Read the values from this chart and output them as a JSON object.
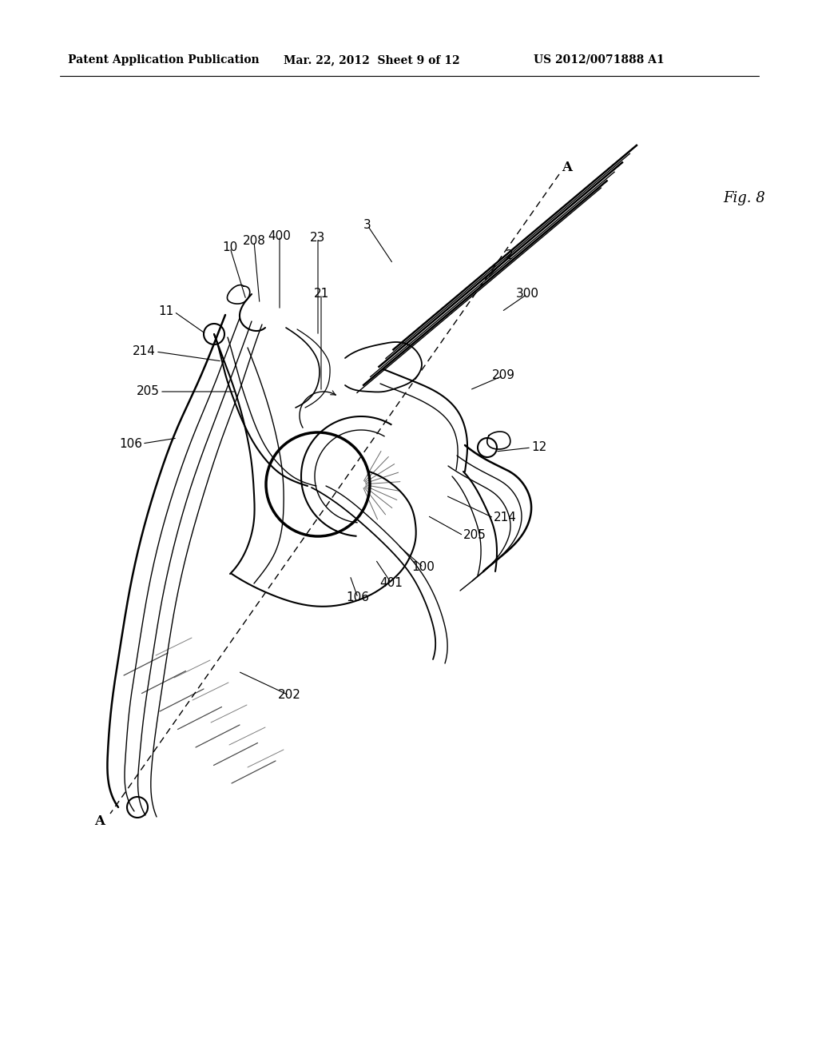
{
  "bg_color": "#ffffff",
  "line_color": "#000000",
  "lw": 1.3,
  "header_left": "Patent Application Publication",
  "header_mid": "Mar. 22, 2012  Sheet 9 of 12",
  "header_right": "US 2012/0071888 A1",
  "fig_label": "Fig. 8",
  "label_fontsize": 10,
  "header_fontsize": 10
}
